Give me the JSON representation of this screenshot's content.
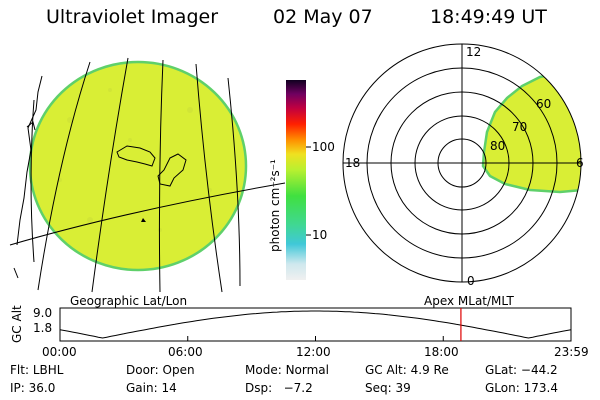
{
  "header": {
    "instrument": "Ultraviolet Imager",
    "date": "02 May 07",
    "time": "18:49:49 UT"
  },
  "globe_panel": {
    "label": "Geographic Lat/Lon"
  },
  "colorbar": {
    "unit_label": "photon cm⁻²s⁻¹",
    "ticks": [
      "100",
      "10"
    ]
  },
  "polar_panel": {
    "label": "Apex MLat/MLT",
    "mlt_labels": {
      "top": "12",
      "left": "18",
      "right": "6",
      "bottom": "0"
    },
    "lat_labels": [
      "60",
      "70",
      "80"
    ]
  },
  "altitude_strip": {
    "axis_label": "GC Alt",
    "y_ticks": [
      "9.0",
      "1.8"
    ],
    "time_ticks": [
      "00:00",
      "06:00",
      "12:00",
      "18:00",
      "23:59"
    ],
    "current_marker_hours": 18.83
  },
  "status": {
    "row1": [
      {
        "key": "Flt:",
        "value": "LBHL"
      },
      {
        "key": "Door:",
        "value": "Open"
      },
      {
        "key": "Mode:",
        "value": "Normal"
      },
      {
        "key": "GC Alt:",
        "value": "4.9 Re"
      },
      {
        "key": "GLat:",
        "value": "−44.2"
      }
    ],
    "row2": [
      {
        "key": "IP:",
        "value": "36.0"
      },
      {
        "key": "Gain:",
        "value": "14"
      },
      {
        "key": "Dsp:",
        "value": "−7.2"
      },
      {
        "key": "Seq:",
        "value": "39"
      },
      {
        "key": "GLon:",
        "value": "173.4"
      }
    ]
  },
  "colors": {
    "glow": "#d9ee35",
    "glow_edge": "#5fd06a",
    "marker": "#dd0000"
  }
}
